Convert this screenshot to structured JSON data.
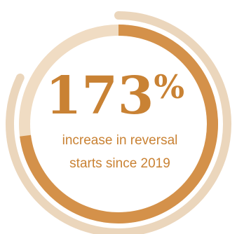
{
  "stat": {
    "number": "173",
    "unit": "%",
    "caption_line1": "increase in reversal",
    "caption_line2": "starts since 2019"
  },
  "chart_data": {
    "type": "pie",
    "rings": [
      {
        "name": "outer",
        "value": 0.82
      },
      {
        "name": "inner",
        "value": 0.73
      }
    ]
  },
  "colors": {
    "track": "#f0dcc3",
    "outer_arc": "#ebd6bc",
    "inner_arc": "#d4914a",
    "number": "#c98234",
    "caption": "#c98234"
  }
}
